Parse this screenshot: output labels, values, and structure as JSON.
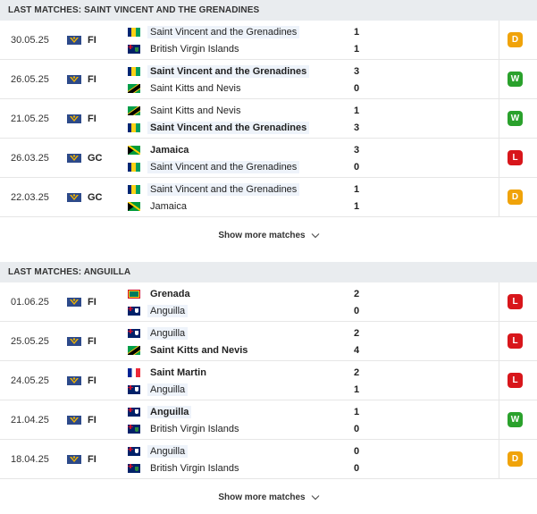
{
  "sections": [
    {
      "title": "LAST MATCHES: SAINT VINCENT AND THE GRENADINES",
      "show_more": "Show more matches",
      "matches": [
        {
          "date": "30.05.25",
          "comp": "FI",
          "home": {
            "name": "Saint Vincent and the Grenadines",
            "flag": "svg",
            "bold": false,
            "hl": true,
            "score": "1"
          },
          "away": {
            "name": "British Virgin Islands",
            "flag": "bvi",
            "bold": false,
            "hl": false,
            "score": "1"
          },
          "result": "D"
        },
        {
          "date": "26.05.25",
          "comp": "FI",
          "home": {
            "name": "Saint Vincent and the Grenadines",
            "flag": "svg",
            "bold": true,
            "hl": true,
            "score": "3"
          },
          "away": {
            "name": "Saint Kitts and Nevis",
            "flag": "skn",
            "bold": false,
            "hl": false,
            "score": "0"
          },
          "result": "W"
        },
        {
          "date": "21.05.25",
          "comp": "FI",
          "home": {
            "name": "Saint Kitts and Nevis",
            "flag": "skn",
            "bold": false,
            "hl": false,
            "score": "1"
          },
          "away": {
            "name": "Saint Vincent and the Grenadines",
            "flag": "svg",
            "bold": true,
            "hl": true,
            "score": "3"
          },
          "result": "W"
        },
        {
          "date": "26.03.25",
          "comp": "GC",
          "home": {
            "name": "Jamaica",
            "flag": "jam",
            "bold": true,
            "hl": false,
            "score": "3"
          },
          "away": {
            "name": "Saint Vincent and the Grenadines",
            "flag": "svg",
            "bold": false,
            "hl": true,
            "score": "0"
          },
          "result": "L"
        },
        {
          "date": "22.03.25",
          "comp": "GC",
          "home": {
            "name": "Saint Vincent and the Grenadines",
            "flag": "svg",
            "bold": false,
            "hl": true,
            "score": "1"
          },
          "away": {
            "name": "Jamaica",
            "flag": "jam",
            "bold": false,
            "hl": false,
            "score": "1"
          },
          "result": "D"
        }
      ]
    },
    {
      "title": "LAST MATCHES: ANGUILLA",
      "show_more": "Show more matches",
      "matches": [
        {
          "date": "01.06.25",
          "comp": "FI",
          "home": {
            "name": "Grenada",
            "flag": "grn",
            "bold": true,
            "hl": false,
            "score": "2"
          },
          "away": {
            "name": "Anguilla",
            "flag": "ang",
            "bold": false,
            "hl": true,
            "score": "0"
          },
          "result": "L"
        },
        {
          "date": "25.05.25",
          "comp": "FI",
          "home": {
            "name": "Anguilla",
            "flag": "ang",
            "bold": false,
            "hl": true,
            "score": "2"
          },
          "away": {
            "name": "Saint Kitts and Nevis",
            "flag": "skn",
            "bold": true,
            "hl": false,
            "score": "4"
          },
          "result": "L"
        },
        {
          "date": "24.05.25",
          "comp": "FI",
          "home": {
            "name": "Saint Martin",
            "flag": "stm",
            "bold": true,
            "hl": false,
            "score": "2"
          },
          "away": {
            "name": "Anguilla",
            "flag": "ang",
            "bold": false,
            "hl": true,
            "score": "1"
          },
          "result": "L"
        },
        {
          "date": "21.04.25",
          "comp": "FI",
          "home": {
            "name": "Anguilla",
            "flag": "ang",
            "bold": true,
            "hl": true,
            "score": "1"
          },
          "away": {
            "name": "British Virgin Islands",
            "flag": "bvi",
            "bold": false,
            "hl": false,
            "score": "0"
          },
          "result": "W"
        },
        {
          "date": "18.04.25",
          "comp": "FI",
          "home": {
            "name": "Anguilla",
            "flag": "ang",
            "bold": false,
            "hl": true,
            "score": "0"
          },
          "away": {
            "name": "British Virgin Islands",
            "flag": "bvi",
            "bold": false,
            "hl": false,
            "score": "0"
          },
          "result": "D"
        }
      ]
    }
  ],
  "icons": {
    "competition": "competition-flag-icon",
    "chevron": "chevron-down-icon"
  },
  "colors": {
    "win": "#2aa12c",
    "loss": "#d8161b",
    "draw": "#f0a30a",
    "highlight": "#eef3fa",
    "header_bg": "#e9ecef"
  }
}
